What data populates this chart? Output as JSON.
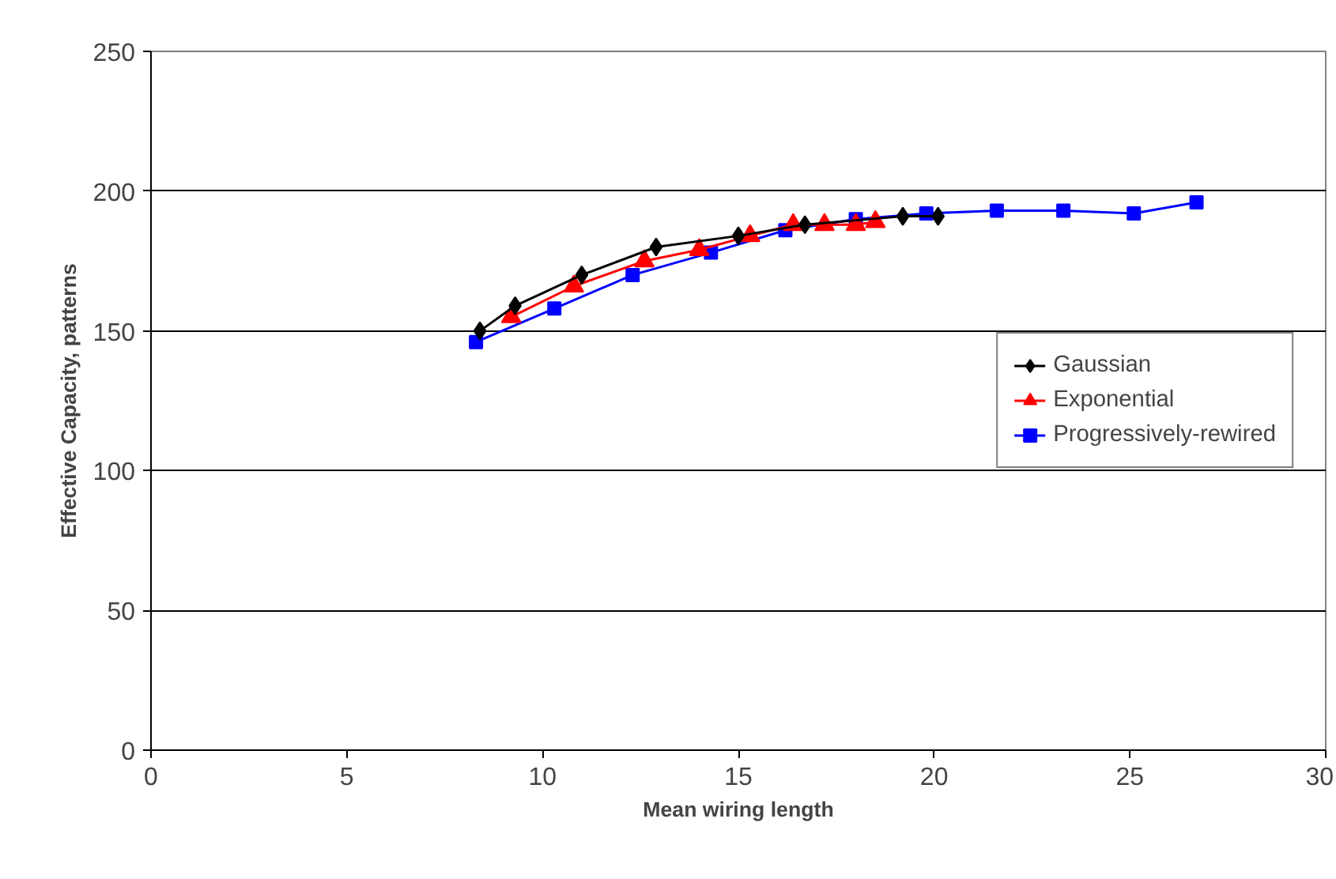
{
  "chart_data": {
    "type": "line",
    "xlabel": "Mean wiring length",
    "ylabel": "Effective Capacity, patterns",
    "xlim": [
      0,
      30
    ],
    "xticks": [
      0,
      5,
      10,
      15,
      20,
      25,
      30
    ],
    "ylim": [
      0,
      250
    ],
    "yticks": [
      0,
      50,
      100,
      150,
      200,
      250
    ],
    "grid": "y",
    "legend": "right",
    "line_style": "solid",
    "series": [
      {
        "name": "Gaussian",
        "color": "#000000",
        "marker": "diamond",
        "x": [
          8.4,
          9.3,
          11.0,
          12.9,
          15.0,
          16.7,
          19.2,
          20.1
        ],
        "values": [
          150,
          159,
          170,
          180,
          184,
          188,
          191,
          191
        ]
      },
      {
        "name": "Exponential",
        "color": "#ff0000",
        "marker": "triangle",
        "x": [
          9.2,
          10.8,
          12.6,
          14.0,
          15.3,
          16.4,
          17.2,
          18.0,
          18.5
        ],
        "values": [
          155,
          166,
          175,
          179,
          184,
          188,
          188,
          188,
          189
        ]
      },
      {
        "name": "Progressively-rewired",
        "color": "#0000ff",
        "marker": "square",
        "x": [
          8.3,
          10.3,
          12.3,
          14.3,
          16.2,
          18.0,
          19.8,
          21.6,
          23.3,
          25.1,
          26.7
        ],
        "values": [
          146,
          158,
          170,
          178,
          186,
          190,
          192,
          193,
          193,
          192,
          196
        ]
      }
    ]
  }
}
